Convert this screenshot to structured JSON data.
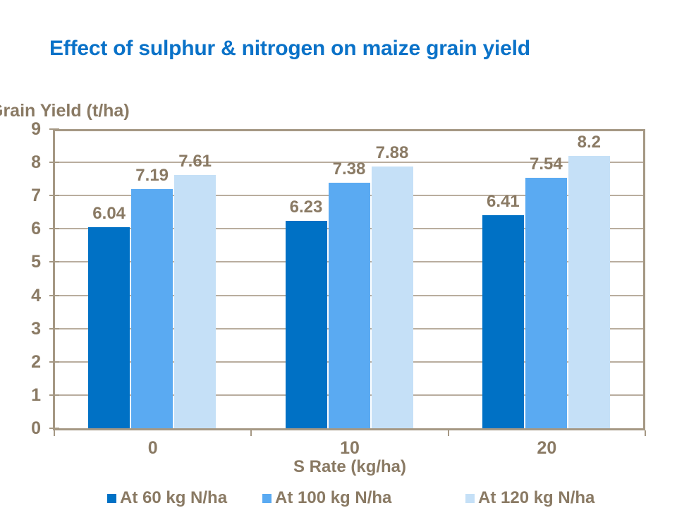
{
  "title": "Effect of sulphur & nitrogen on maize grain yield",
  "colors": {
    "title": "#0a72c8",
    "text": "#8a7a64",
    "grid": "#b9ad9e",
    "axis": "#a59884",
    "background": "#ffffff",
    "series": [
      "#0071c5",
      "#5aaaf2",
      "#c5e0f7"
    ]
  },
  "chart_data": {
    "type": "bar",
    "title": "Effect of sulphur & nitrogen on maize grain yield",
    "categories": [
      "0",
      "10",
      "20"
    ],
    "series": [
      {
        "name": "At 60 kg N/ha",
        "values": [
          6.04,
          6.23,
          6.41
        ]
      },
      {
        "name": "At 100 kg N/ha",
        "values": [
          7.19,
          7.38,
          7.54
        ]
      },
      {
        "name": "At 120 kg N/ha",
        "values": [
          7.61,
          7.88,
          8.2
        ]
      }
    ],
    "data_labels": [
      [
        "6.04",
        "7.19",
        "7.61"
      ],
      [
        "6.23",
        "7.38",
        "7.88"
      ],
      [
        "6.41",
        "7.54",
        "8.2"
      ]
    ],
    "xlabel": "S Rate (kg/ha)",
    "ylabel": "Grain Yield (t/ha)",
    "ylim": [
      0,
      9
    ],
    "ytick_step": 1,
    "grid": true,
    "legend_position": "bottom",
    "legend": [
      "At 60 kg N/ha",
      "At 100 kg N/ha",
      "At 120 kg N/ha"
    ]
  }
}
